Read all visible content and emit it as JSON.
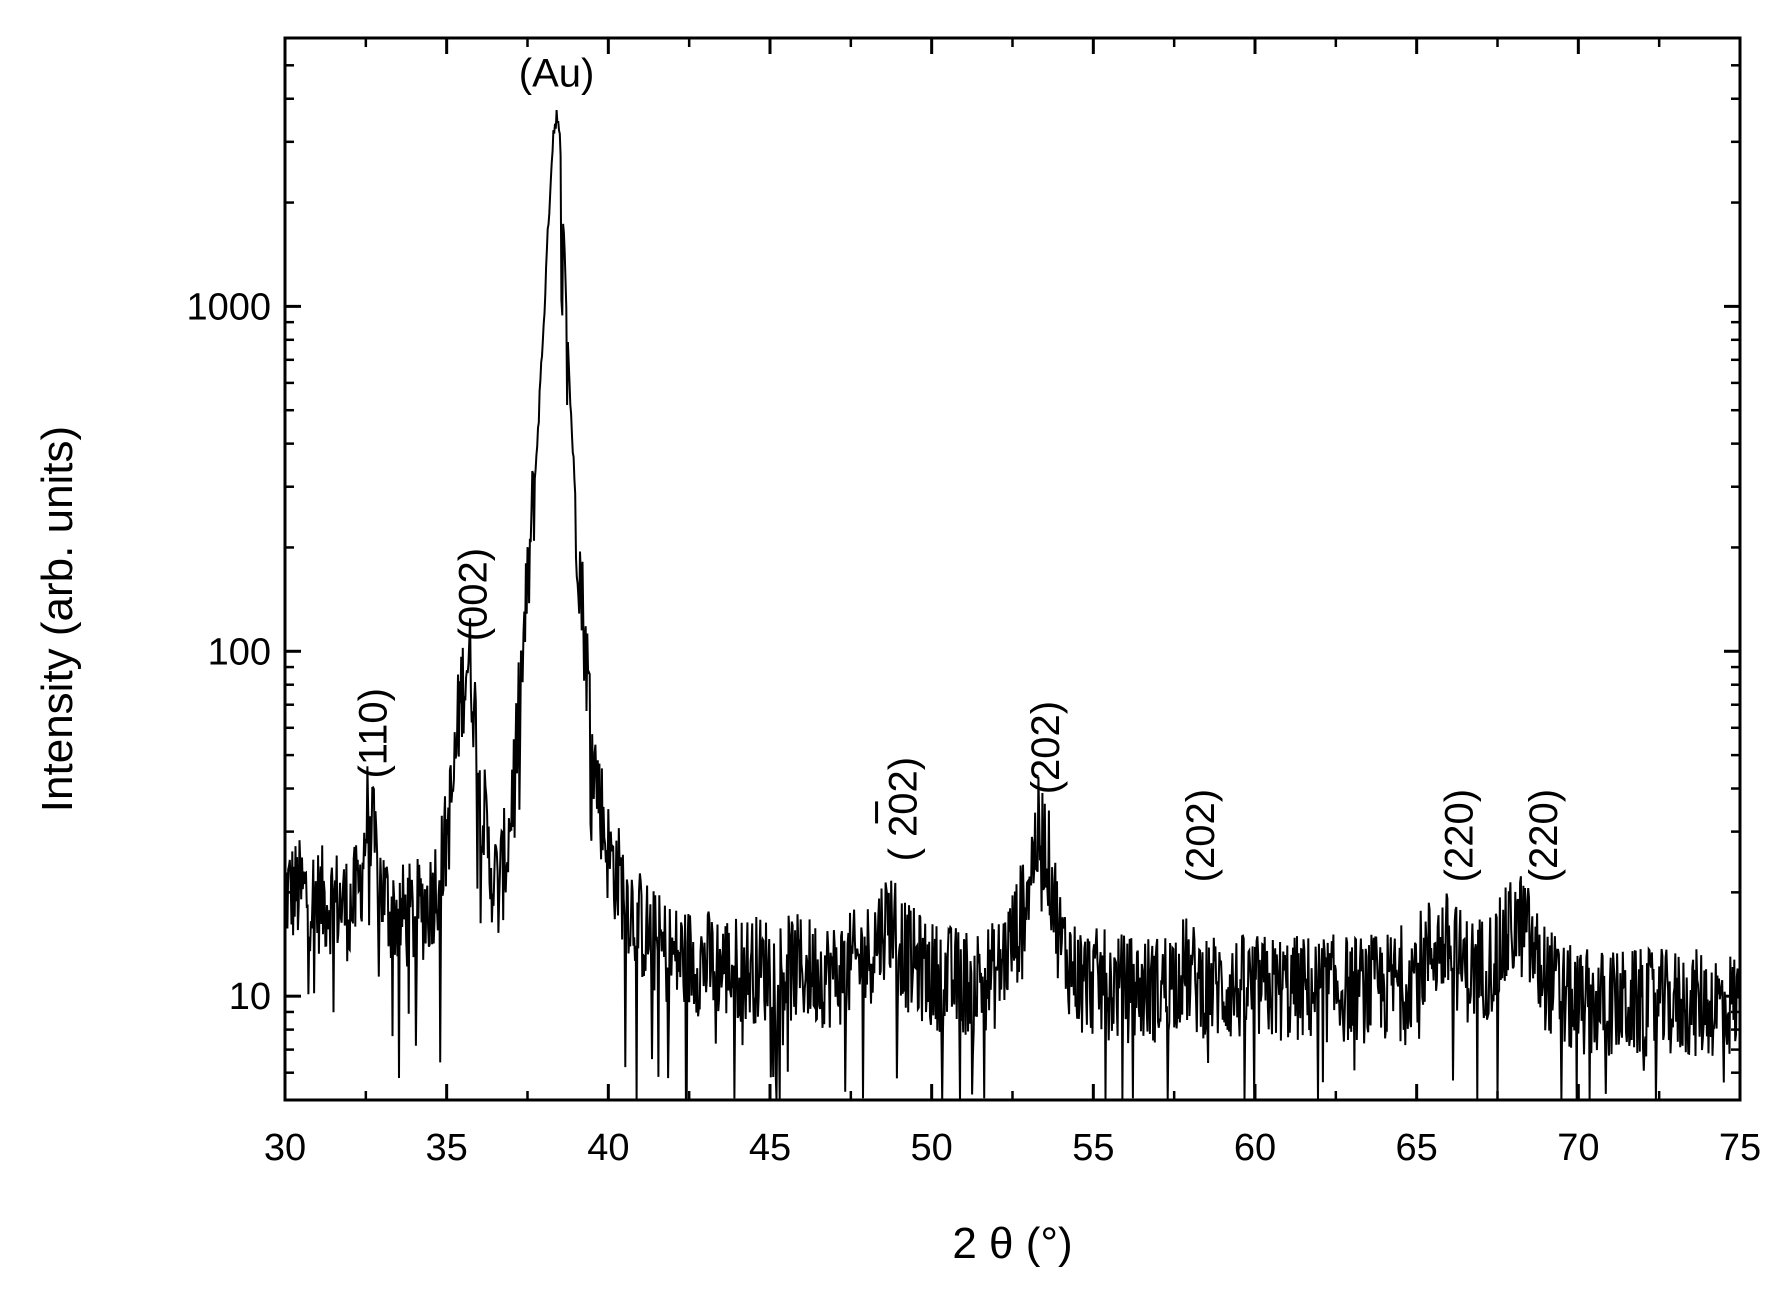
{
  "chart_data": {
    "type": "line",
    "title": "",
    "xlabel": "2 θ (°)",
    "ylabel": "Intensity (arb. units)",
    "xlim": [
      30,
      75
    ],
    "ylim": [
      5,
      6000
    ],
    "yscale": "log",
    "grid": false,
    "x_ticks": [
      30,
      35,
      40,
      45,
      50,
      55,
      60,
      65,
      70,
      75
    ],
    "x_tick_labels": [
      "30",
      "35",
      "40",
      "45",
      "50",
      "55",
      "60",
      "65",
      "70",
      "75"
    ],
    "y_ticks": [
      10,
      100,
      1000
    ],
    "y_tick_labels": [
      "10",
      "100",
      "1000"
    ],
    "series": [
      {
        "color": "#000000",
        "x": [
          30.0,
          30.5,
          31.0,
          31.5,
          32.0,
          32.3,
          32.5,
          32.6,
          32.7,
          32.9,
          33.2,
          33.6,
          34.0,
          34.5,
          34.9,
          35.2,
          35.4,
          35.6,
          35.7,
          35.8,
          36.0,
          36.3,
          36.6,
          36.9,
          37.2,
          37.5,
          37.8,
          38.0,
          38.2,
          38.3,
          38.4,
          38.5,
          38.6,
          38.8,
          39.0,
          39.3,
          39.6,
          40.0,
          40.5,
          41.0,
          41.5,
          42.0,
          43.0,
          44.0,
          45.0,
          46.0,
          47.0,
          48.0,
          48.5,
          48.8,
          49.2,
          50.0,
          51.0,
          52.0,
          52.7,
          53.0,
          53.3,
          53.5,
          53.7,
          54.0,
          54.5,
          55.0,
          56.0,
          57.0,
          57.8,
          58.2,
          59.0,
          60.0,
          61.0,
          62.0,
          63.0,
          64.0,
          65.0,
          65.5,
          66.0,
          66.5,
          67.0,
          67.5,
          68.0,
          68.3,
          68.8,
          69.5,
          70.0,
          71.0,
          72.0,
          73.0,
          74.0,
          75.0
        ],
        "y": [
          20,
          20,
          19,
          19,
          18,
          20,
          30,
          38,
          30,
          22,
          18,
          17,
          17,
          19,
          25,
          40,
          70,
          92,
          95,
          80,
          45,
          25,
          20,
          28,
          60,
          150,
          400,
          900,
          2200,
          3200,
          3600,
          3000,
          1800,
          600,
          250,
          100,
          45,
          26,
          20,
          16,
          14,
          13,
          12.5,
          12,
          12,
          12,
          11.5,
          13,
          16,
          17,
          13,
          11.5,
          11,
          11.5,
          16,
          22,
          30,
          28,
          22,
          14,
          11.5,
          11,
          10.5,
          10.5,
          12,
          11,
          10.5,
          10.5,
          10.5,
          10.5,
          10.5,
          10.5,
          12,
          14,
          14,
          12,
          12,
          13,
          16,
          16,
          12,
          10,
          9.5,
          9.5,
          9.5,
          9.5,
          9.5,
          9.5
        ]
      }
    ],
    "annotations": [
      {
        "text": "(Au)",
        "x": 38.4,
        "y": 3600,
        "rotation": 0
      },
      {
        "text": "(110)",
        "x": 32.7,
        "y": 40,
        "rotation": -90
      },
      {
        "text": "(002)",
        "x": 35.8,
        "y": 100,
        "rotation": -90
      },
      {
        "text": "( 202)",
        "x": 49.1,
        "y": 23,
        "rotation": -90,
        "overbar": "2"
      },
      {
        "text": "(202)",
        "x": 53.5,
        "y": 36,
        "rotation": -90
      },
      {
        "text": "(202)",
        "x": 58.3,
        "y": 20,
        "rotation": -90
      },
      {
        "text": "(220)",
        "x": 66.3,
        "y": 20,
        "rotation": -90
      },
      {
        "text": "(220)",
        "x": 68.9,
        "y": 20,
        "rotation": -90
      }
    ]
  }
}
